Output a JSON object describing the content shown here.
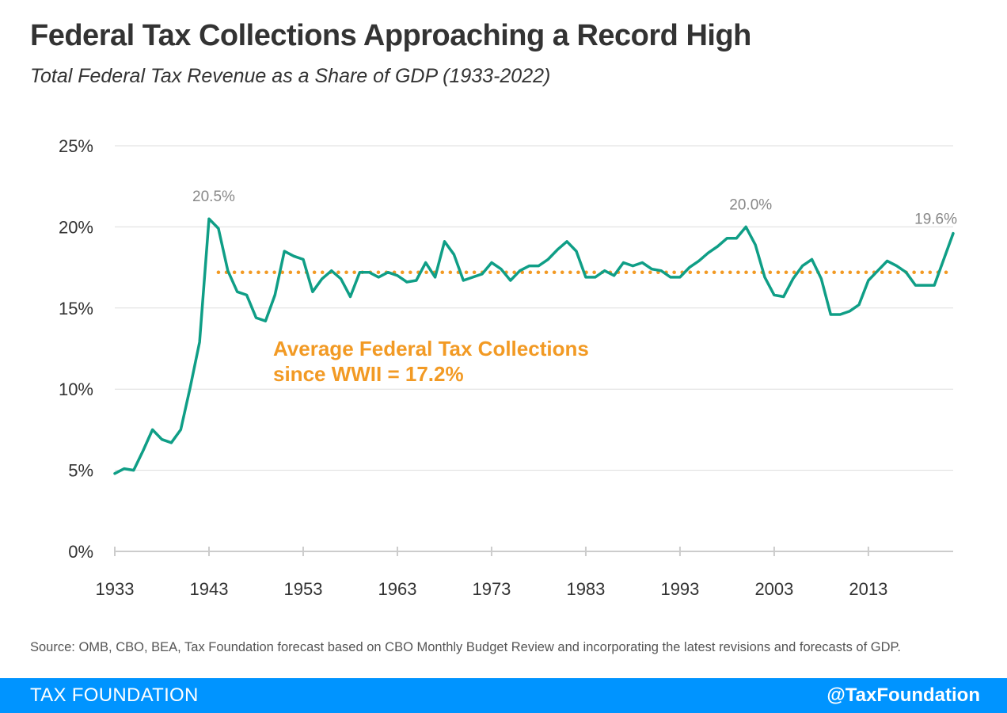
{
  "title": "Federal Tax Collections Approaching a Record High",
  "subtitle": "Total Federal Tax Revenue as a Share of GDP (1933-2022)",
  "source": "Source: OMB, CBO, BEA, Tax Foundation forecast based on CBO Monthly Budget Review and incorporating the latest revisions and forecasts of GDP.",
  "footer": {
    "brand": "TAX FOUNDATION",
    "handle": "@TaxFoundation"
  },
  "colors": {
    "line": "#0f9e86",
    "average": "#f29a24",
    "annotation": "#888888",
    "footer": "#0094ff",
    "grid": "#dddddd"
  },
  "chart_data": {
    "type": "line",
    "title": "Federal Tax Collections Approaching a Record High",
    "subtitle": "Total Federal Tax Revenue as a Share of GDP (1933-2022)",
    "xlabel": "",
    "ylabel": "",
    "xlim": [
      1933,
      2022
    ],
    "ylim": [
      0,
      25
    ],
    "grid": true,
    "x_ticks": [
      1933,
      1943,
      1953,
      1963,
      1973,
      1983,
      1993,
      2003,
      2013
    ],
    "x_tick_labels": [
      "1933",
      "1943",
      "1953",
      "1963",
      "1973",
      "1983",
      "1993",
      "2003",
      "2013"
    ],
    "y_ticks": [
      0,
      5,
      10,
      15,
      20,
      25
    ],
    "y_tick_labels": [
      "0%",
      "5%",
      "10%",
      "15%",
      "20%",
      "25%"
    ],
    "series": [
      {
        "x": [
          1933,
          1934,
          1935,
          1936,
          1937,
          1938,
          1939,
          1940,
          1941,
          1942,
          1943,
          1944,
          1945,
          1946,
          1947,
          1948,
          1949,
          1950,
          1951,
          1952,
          1953,
          1954,
          1955,
          1956,
          1957,
          1958,
          1959,
          1960,
          1961,
          1962,
          1963,
          1964,
          1965,
          1966,
          1967,
          1968,
          1969,
          1970,
          1971,
          1972,
          1973,
          1974,
          1975,
          1976,
          1977,
          1978,
          1979,
          1980,
          1981,
          1982,
          1983,
          1984,
          1985,
          1986,
          1987,
          1988,
          1989,
          1990,
          1991,
          1992,
          1993,
          1994,
          1995,
          1996,
          1997,
          1998,
          1999,
          2000,
          2001,
          2002,
          2003,
          2004,
          2005,
          2006,
          2007,
          2008,
          2009,
          2010,
          2011,
          2012,
          2013,
          2014,
          2015,
          2016,
          2017,
          2018,
          2019,
          2020,
          2021,
          2022
        ],
        "values": [
          4.8,
          5.1,
          5.0,
          6.2,
          7.5,
          6.9,
          6.7,
          7.5,
          10.1,
          12.9,
          20.5,
          19.9,
          17.3,
          16.0,
          15.8,
          14.4,
          14.2,
          15.8,
          18.5,
          18.2,
          18.0,
          16.0,
          16.8,
          17.3,
          16.8,
          15.7,
          17.2,
          17.2,
          16.9,
          17.2,
          17.0,
          16.6,
          16.7,
          17.8,
          16.9,
          19.1,
          18.3,
          16.7,
          16.9,
          17.1,
          17.8,
          17.4,
          16.7,
          17.3,
          17.6,
          17.6,
          18.0,
          18.6,
          19.1,
          18.5,
          16.9,
          16.9,
          17.3,
          17.0,
          17.8,
          17.6,
          17.8,
          17.4,
          17.3,
          16.9,
          16.9,
          17.5,
          17.9,
          18.4,
          18.8,
          19.3,
          19.3,
          20.0,
          18.9,
          16.9,
          15.8,
          15.7,
          16.8,
          17.6,
          18.0,
          16.8,
          14.6,
          14.6,
          14.8,
          15.2,
          16.7,
          17.3,
          17.9,
          17.6,
          17.2,
          16.4,
          16.4,
          16.4,
          18.0,
          19.6
        ]
      }
    ],
    "average_line": {
      "value": 17.2,
      "from": 1944,
      "to": 2022,
      "label_lines": [
        "Average Federal Tax Collections",
        "since WWII = 17.2%"
      ]
    },
    "annotations": [
      {
        "text": "20.5%",
        "x": 1943,
        "y": 20.5
      },
      {
        "text": "20.0%",
        "x": 2000,
        "y": 20.0
      },
      {
        "text": "19.6%",
        "x": 2022,
        "y": 19.6
      }
    ]
  }
}
